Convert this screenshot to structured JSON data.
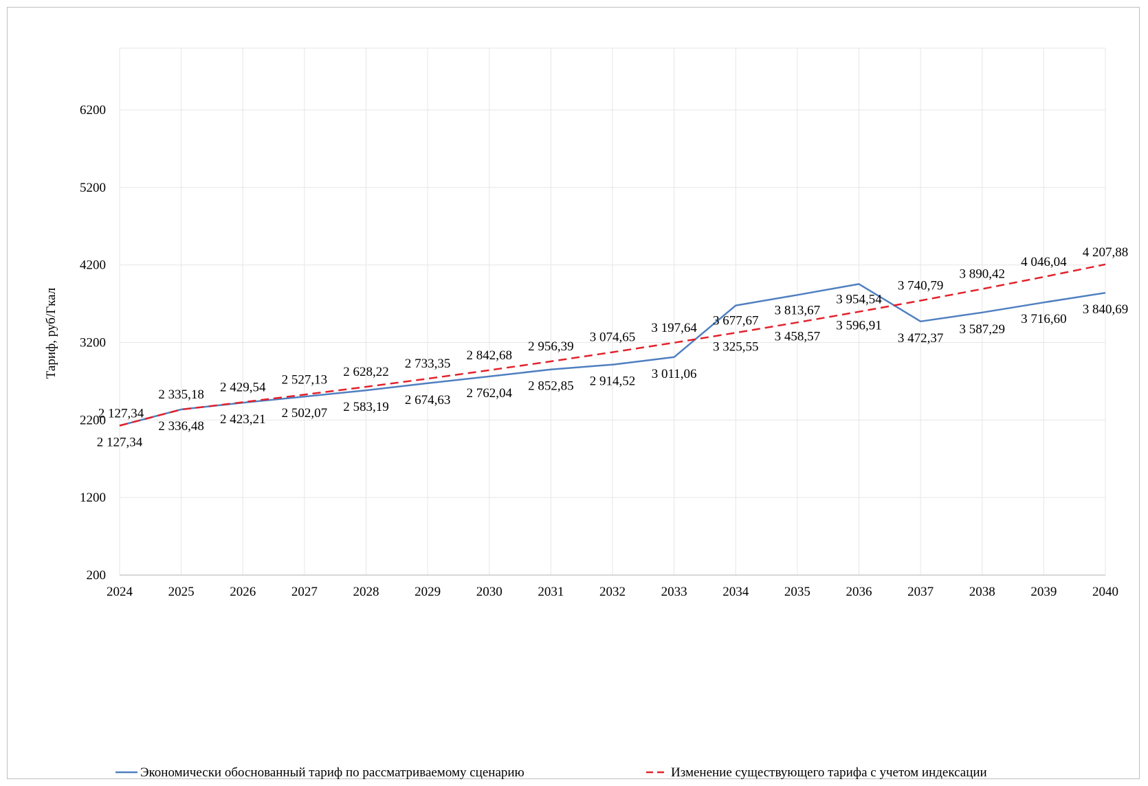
{
  "chart_data": {
    "type": "line",
    "title": "",
    "xlabel": "",
    "ylabel": "Тариф, руб/Гкал",
    "ylim": [
      200,
      6200
    ],
    "yticks": [
      "200",
      "1200",
      "2200",
      "3200",
      "4200",
      "5200",
      "6200"
    ],
    "categories": [
      "2024",
      "2025",
      "2026",
      "2027",
      "2028",
      "2029",
      "2030",
      "2031",
      "2032",
      "2033",
      "2034",
      "2035",
      "2036",
      "2037",
      "2038",
      "2039",
      "2040"
    ],
    "grid": true,
    "legend_position": "bottom",
    "series": [
      {
        "name": "Экономически обоснованный тариф по рассматриваемому сценарию",
        "color": "#4f7fc0",
        "dash": "solid",
        "values": [
          2127.34,
          2336.48,
          2423.21,
          2502.07,
          2583.19,
          2674.63,
          2762.04,
          2852.85,
          2914.52,
          3011.06,
          3677.67,
          3813.67,
          3954.54,
          3472.37,
          3587.29,
          3716.6,
          3840.69
        ],
        "labels": [
          "2 127,34",
          "2 336,48",
          "2 423,21",
          "2 502,07",
          "2 583,19",
          "2 674,63",
          "2 762,04",
          "2 852,85",
          "2 914,52",
          "3 011,06",
          "3 677,67",
          "3 813,67",
          "3 954,54",
          "3 472,37",
          "3 587,29",
          "3 716,60",
          "3 840,69"
        ]
      },
      {
        "name": "Изменение существующего тарифа с учетом индексации",
        "color": "#e3212b",
        "dash": "dashed",
        "values": [
          2127.34,
          2335.18,
          2429.54,
          2527.13,
          2628.22,
          2733.35,
          2842.68,
          2956.39,
          3074.65,
          3197.64,
          3325.55,
          3458.57,
          3596.91,
          3740.79,
          3890.42,
          4046.04,
          4207.88
        ],
        "labels": [
          "2 127,34",
          "2 335,18",
          "2 429,54",
          "2 527,13",
          "2 628,22",
          "2 733,35",
          "2 842,68",
          "2 956,39",
          "3 074,65",
          "3 197,64",
          "3 325,55",
          "3 458,57",
          "3 596,91",
          "3 740,79",
          "3 890,42",
          "4 046,04",
          "4 207,88"
        ]
      }
    ]
  }
}
